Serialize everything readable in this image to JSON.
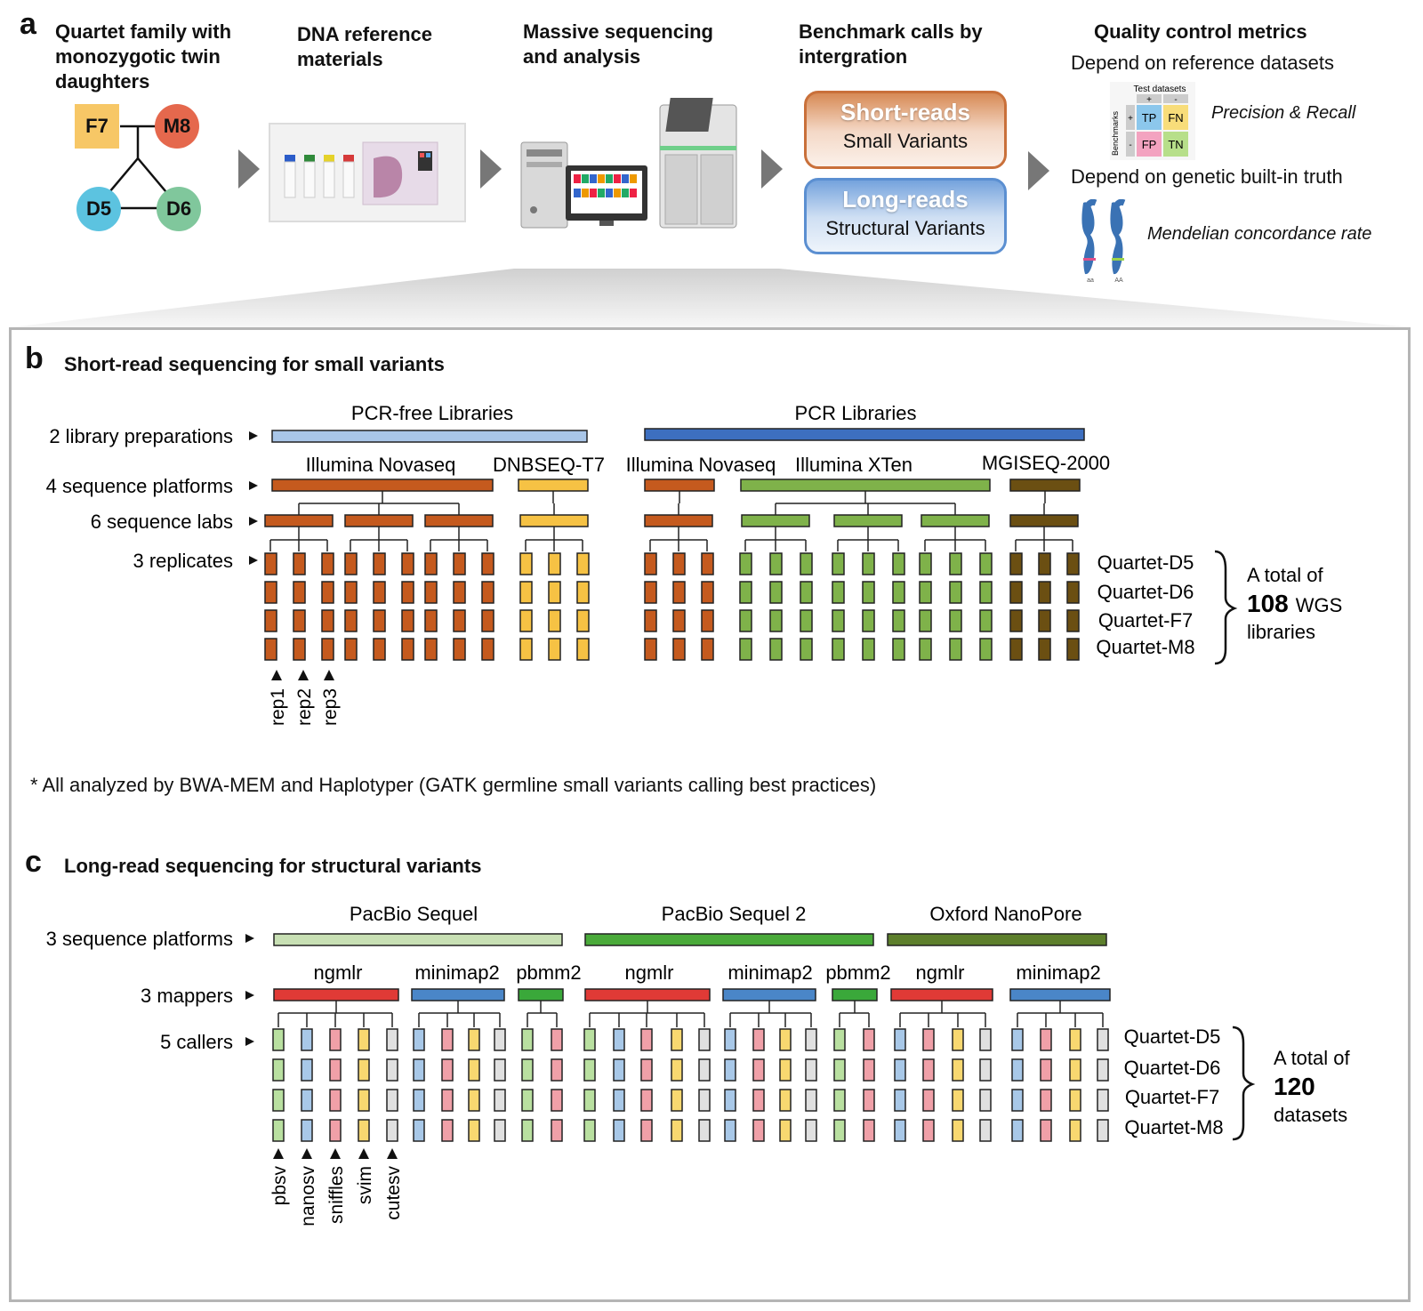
{
  "panel_a": {
    "letter": "a",
    "step1": {
      "title_lines": [
        "Quartet family with",
        "monozygotic twin",
        "daughters"
      ],
      "members": [
        "F7",
        "M8",
        "D5",
        "D6"
      ]
    },
    "step2": {
      "title_lines": [
        "DNA reference",
        "materials"
      ]
    },
    "step3": {
      "title_lines": [
        "Massive sequencing",
        "and analysis"
      ]
    },
    "step4": {
      "title_lines": [
        "Benchmark calls by",
        "intergration"
      ],
      "short": {
        "big": "Short-reads",
        "small": "Small Variants"
      },
      "long": {
        "big": "Long-reads",
        "small": "Structural Variants"
      }
    },
    "step5": {
      "title": "Quality control metrics",
      "line1": "Depend on reference datasets",
      "matrix": {
        "header": "Test datasets",
        "side": "Benchmarks",
        "plus": "+",
        "minus": "-",
        "tp": "TP",
        "fn": "FN",
        "fp": "FP",
        "tn": "TN"
      },
      "precision": "Precision & Recall",
      "line2": "Depend on genetic built-in truth",
      "chrom_labels": [
        "aa",
        "AA"
      ],
      "mendel": "Mendelian concordance rate"
    },
    "colors": {
      "F7": "#f7c766",
      "M8": "#e5684d",
      "D5": "#5cc3e0",
      "D6": "#80c79c",
      "short_pill": "#c9703a",
      "long_pill": "#5b8fd1"
    }
  },
  "panel_b": {
    "letter": "b",
    "title": "Short-read sequencing for small variants",
    "rows": [
      "2 library preparations",
      "4 sequence platforms",
      "6 sequence labs",
      "3 replicates"
    ],
    "libraries": [
      "PCR-free Libraries",
      "PCR Libraries"
    ],
    "platforms": [
      "Illumina Novaseq",
      "DNBSEQ-T7",
      "Illumina Novaseq",
      "Illumina XTen",
      "MGISEQ-2000"
    ],
    "samples": [
      "Quartet-D5",
      "Quartet-D6",
      "Quartet-F7",
      "Quartet-M8"
    ],
    "rep_labels": [
      "rep1",
      "rep2",
      "rep3"
    ],
    "total_prefix": "A total of",
    "total_number": "108",
    "total_suffix": "WGS",
    "total_unit": "libraries",
    "footnote": "* All analyzed by BWA-MEM and Haplotyper (GATK germline small variants calling best practices)",
    "colors": {
      "pcrfree": "#a9c6e8",
      "pcr": "#3d6fc0",
      "novaseq": "#c55a1e",
      "dnbseq": "#f6c244",
      "xten": "#7fb24a",
      "mgiseq": "#6b4f12"
    }
  },
  "panel_c": {
    "letter": "c",
    "title": "Long-read sequencing for structural variants",
    "rows": [
      "3 sequence platforms",
      "3 mappers",
      "5 callers"
    ],
    "platforms": [
      "PacBio Sequel",
      "PacBio Sequel 2",
      "Oxford NanoPore"
    ],
    "mappers": [
      "ngmlr",
      "minimap2",
      "pbmm2",
      "ngmlr",
      "minimap2",
      "pbmm2",
      "ngmlr",
      "minimap2"
    ],
    "samples": [
      "Quartet-D5",
      "Quartet-D6",
      "Quartet-F7",
      "Quartet-M8"
    ],
    "caller_labels": [
      "pbsv",
      "nanosv",
      "sniffles",
      "svim",
      "cutesv"
    ],
    "total_prefix": "A total of",
    "total_number": "120",
    "total_unit": "datasets",
    "colors": {
      "sequel": "#c8e0b4",
      "sequel2": "#4aaa3a",
      "nanopore": "#5d7f2c",
      "ngmlr": "#e03a36",
      "minimap2": "#4a86c8",
      "pbmm2": "#3aa83a",
      "pbsv": "#b9e0a0",
      "nanosv": "#a8c8e8",
      "sniffles": "#f0a0a8",
      "svim": "#f8d870",
      "cutesv": "#e0e0e0"
    }
  }
}
